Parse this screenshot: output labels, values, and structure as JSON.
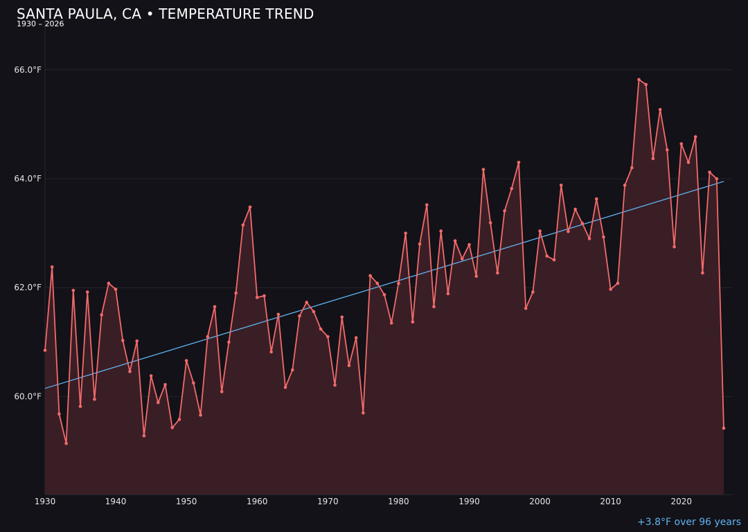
{
  "title": "SANTA PAULA, CA • TEMPERATURE TREND",
  "subtitle": "1930 – 2026",
  "trend_note": "+3.8°F over 96 years",
  "colors": {
    "background": "#131218",
    "series": "#f26b6b",
    "area_fill": "#3a1e25",
    "trend": "#5fb3f0",
    "grid": "#26242b"
  },
  "chart_data": {
    "type": "line",
    "title": "SANTA PAULA, CA • TEMPERATURE TREND",
    "subtitle": "1930 – 2026",
    "xlabel": "",
    "ylabel": "",
    "xlim": [
      1930,
      2026
    ],
    "ylim": [
      58.2,
      66.9
    ],
    "grid": true,
    "x_ticks": [
      1930,
      1940,
      1950,
      1960,
      1970,
      1980,
      1990,
      2000,
      2010,
      2020
    ],
    "y_ticks": [
      60.0,
      62.0,
      64.0,
      66.0
    ],
    "y_tick_labels": [
      "60.0°F",
      "62.0°F",
      "64.0°F",
      "66.0°F"
    ],
    "series": [
      {
        "x": [
          1930,
          1931,
          1932,
          1933,
          1934,
          1935,
          1936,
          1937,
          1938,
          1939,
          1940,
          1941,
          1942,
          1943,
          1944,
          1945,
          1946,
          1947,
          1948,
          1949,
          1950,
          1951,
          1952,
          1953,
          1954,
          1955,
          1956,
          1957,
          1958,
          1959,
          1960,
          1961,
          1962,
          1963,
          1964,
          1965,
          1966,
          1967,
          1968,
          1969,
          1970,
          1971,
          1972,
          1973,
          1974,
          1975,
          1976,
          1977,
          1978,
          1979,
          1980,
          1981,
          1982,
          1983,
          1984,
          1985,
          1986,
          1987,
          1988,
          1989,
          1990,
          1991,
          1992,
          1993,
          1994,
          1995,
          1996,
          1997,
          1998,
          1999,
          2000,
          2001,
          2002,
          2003,
          2004,
          2005,
          2006,
          2007,
          2008,
          2009,
          2010,
          2011,
          2012,
          2013,
          2014,
          2015,
          2016,
          2017,
          2018,
          2019,
          2020,
          2021,
          2022,
          2023,
          2024,
          2025,
          2026
        ],
        "values": [
          60.85,
          62.38,
          59.68,
          59.14,
          61.95,
          59.82,
          61.92,
          59.95,
          61.5,
          62.08,
          61.97,
          61.03,
          60.46,
          61.02,
          59.28,
          60.38,
          59.89,
          60.22,
          59.43,
          59.58,
          60.66,
          60.25,
          59.66,
          61.1,
          61.65,
          60.09,
          61.0,
          61.9,
          63.15,
          63.48,
          61.82,
          61.85,
          60.82,
          61.51,
          60.17,
          60.49,
          61.48,
          61.73,
          61.56,
          61.24,
          61.1,
          60.21,
          61.46,
          60.57,
          61.08,
          59.7,
          62.22,
          62.08,
          61.87,
          61.35,
          62.08,
          63.0,
          61.37,
          62.8,
          63.52,
          61.65,
          63.04,
          61.89,
          62.86,
          62.53,
          62.79,
          62.21,
          64.17,
          63.19,
          62.27,
          63.41,
          63.82,
          64.3,
          61.62,
          61.92,
          63.04,
          62.58,
          62.51,
          63.88,
          63.03,
          63.44,
          63.18,
          62.9,
          63.63,
          62.93,
          61.97,
          62.08,
          63.88,
          64.2,
          65.82,
          65.73,
          64.37,
          65.27,
          64.53,
          62.75,
          64.64,
          64.3,
          64.77,
          62.27,
          64.12,
          64.0,
          59.42
        ]
      }
    ],
    "trend_line": {
      "x": [
        1930,
        2026
      ],
      "values": [
        60.15,
        63.95
      ]
    }
  }
}
